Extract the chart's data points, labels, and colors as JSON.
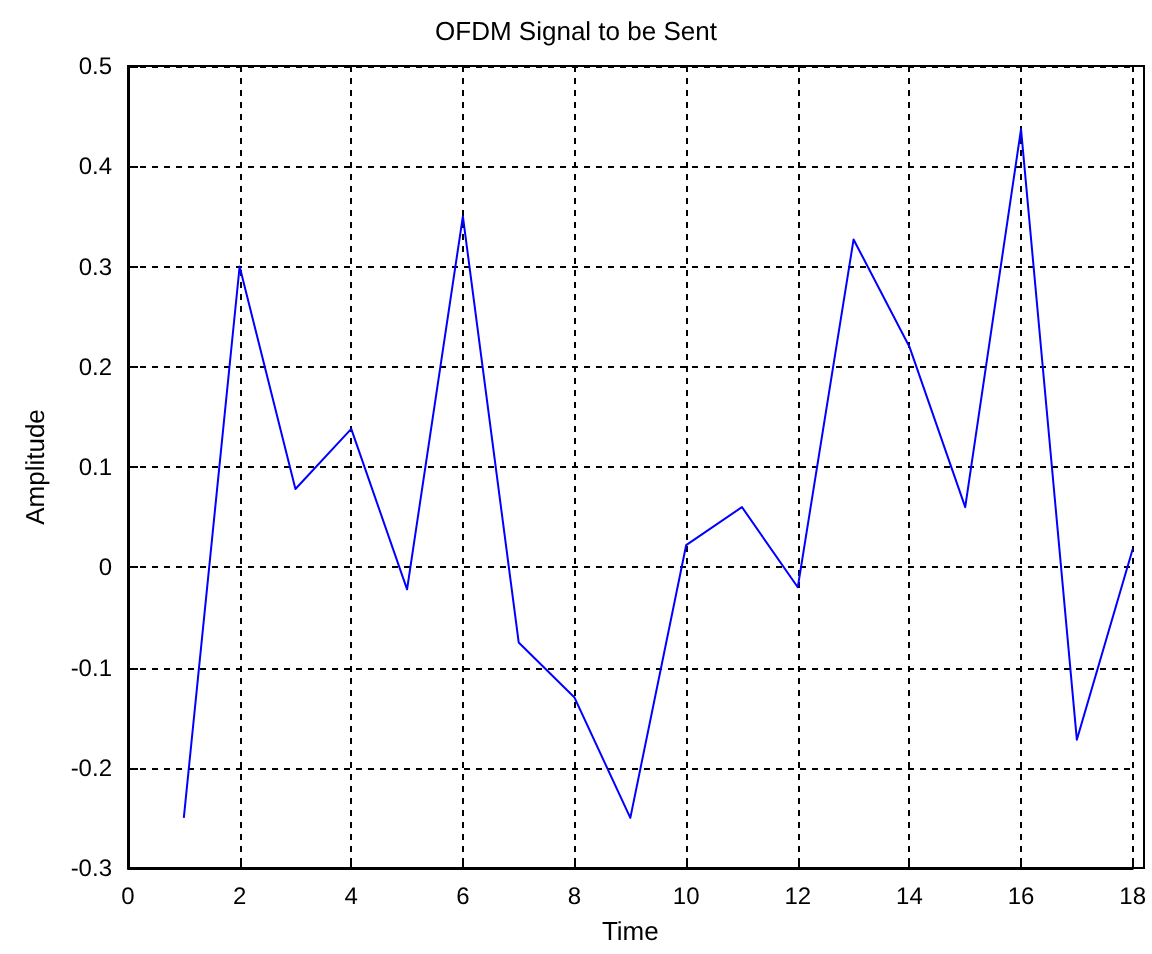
{
  "chart_data": {
    "type": "line",
    "title": "OFDM Signal to be Sent",
    "xlabel": "Time",
    "ylabel": "Amplitude",
    "x": [
      1,
      2,
      3,
      4,
      5,
      6,
      7,
      8,
      9,
      10,
      11,
      12,
      13,
      14,
      15,
      16,
      17,
      18
    ],
    "series": [
      {
        "color": "#0000ff",
        "values": [
          -0.25,
          0.3,
          0.078,
          0.138,
          -0.022,
          0.35,
          -0.075,
          -0.13,
          -0.25,
          0.022,
          0.06,
          -0.02,
          0.327,
          0.22,
          0.06,
          0.437,
          -0.172,
          0.018
        ]
      }
    ],
    "xlim": [
      0,
      18
    ],
    "xticks": [
      0,
      2,
      4,
      6,
      8,
      10,
      12,
      14,
      16,
      18
    ],
    "ylim": [
      -0.3,
      0.5
    ],
    "yticks": [
      -0.3,
      -0.2,
      -0.1,
      0,
      0.1,
      0.2,
      0.3,
      0.4,
      0.5
    ],
    "grid": true,
    "marker": "none",
    "line_style": "solid"
  }
}
